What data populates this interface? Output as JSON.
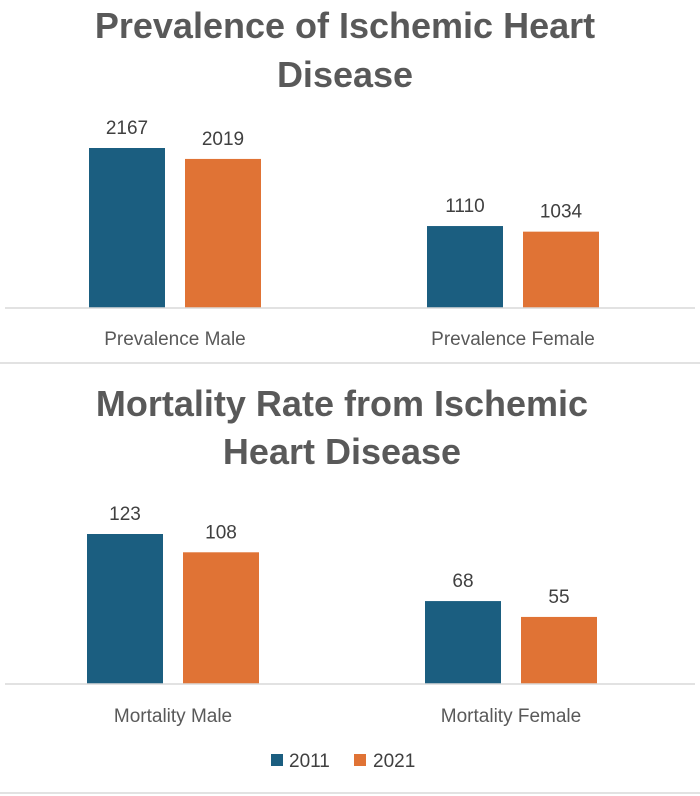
{
  "colors": {
    "series_2011": "#1b5e80",
    "series_2021": "#e07335",
    "axis": "#d9d9d9",
    "title": "#595959",
    "label": "#404040"
  },
  "legend": [
    {
      "name": "2011",
      "color": "#1b5e80"
    },
    {
      "name": "2021",
      "color": "#e07335"
    }
  ],
  "chart_data": [
    {
      "type": "bar",
      "title_lines": [
        "Prevalence of Ischemic Heart",
        "Disease"
      ],
      "categories": [
        "Prevalence Male",
        "Prevalence Female"
      ],
      "series": [
        {
          "name": "2011",
          "values": [
            2167,
            1110
          ]
        },
        {
          "name": "2021",
          "values": [
            2019,
            1034
          ]
        }
      ],
      "ylim": [
        0,
        2167
      ],
      "xlabel": "",
      "ylabel": "",
      "grid": false,
      "legend_position": "bottom"
    },
    {
      "type": "bar",
      "title_lines": [
        "Mortality Rate from Ischemic",
        "Heart  Disease"
      ],
      "categories": [
        "Mortality Male",
        "Mortality Female"
      ],
      "series": [
        {
          "name": "2011",
          "values": [
            123,
            68
          ]
        },
        {
          "name": "2021",
          "values": [
            108,
            55
          ]
        }
      ],
      "ylim": [
        0,
        123
      ],
      "xlabel": "",
      "ylabel": "",
      "grid": false,
      "legend_position": "bottom"
    }
  ]
}
